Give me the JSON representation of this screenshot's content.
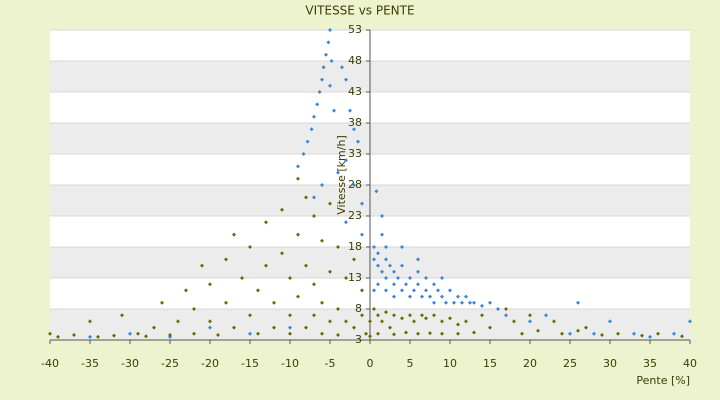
{
  "chart_data": {
    "type": "scatter",
    "title": "VITESSE vs PENTE",
    "x_label": "Pente [%]",
    "y_label": "Vitesse [km/h]",
    "xlim": [
      -40,
      40
    ],
    "xticks": [
      -40,
      -35,
      -30,
      -25,
      -20,
      -15,
      -10,
      -5,
      0,
      5,
      10,
      15,
      20,
      25,
      30,
      35,
      40
    ],
    "ylim": [
      3,
      53
    ],
    "yticks": [
      3,
      8,
      13,
      18,
      23,
      28,
      33,
      38,
      43,
      48,
      53
    ],
    "grid": true,
    "series": [
      {
        "color": "#3a86d8",
        "x": [
          -5,
          -5.2,
          -5.5,
          -5.8,
          -6,
          -6.3,
          -6.6,
          -7,
          -7.3,
          -7.8,
          -8.3,
          -9,
          -4.8,
          -5,
          -4.5,
          -3.5,
          -3,
          -2.5,
          -2,
          -1.5,
          -3,
          -4,
          -6,
          -7,
          -2,
          -1,
          -3,
          -1,
          0.5,
          0.5,
          1,
          1,
          1.5,
          2,
          2,
          2.5,
          3,
          3,
          3.5,
          4,
          4,
          4.5,
          5,
          5,
          5.5,
          6,
          6,
          6.5,
          7,
          7,
          7.5,
          8,
          8,
          8.5,
          9,
          9.5,
          10,
          10.5,
          11,
          11.5,
          12,
          12.5,
          13,
          14,
          15,
          16,
          2,
          1,
          0.5,
          3,
          2,
          1.5,
          4,
          6,
          9,
          0.8,
          1.5,
          17,
          20,
          22,
          28,
          30,
          33,
          35,
          38,
          40,
          -15,
          -20,
          -30,
          -25,
          -10,
          -35,
          25,
          26
        ],
        "values": [
          53,
          51,
          49,
          47,
          45,
          43,
          41,
          39,
          37,
          35,
          33,
          31,
          48,
          44,
          40,
          47,
          45,
          40,
          37,
          35,
          32,
          30,
          28,
          26,
          28,
          25,
          22,
          20,
          18,
          16,
          17,
          15,
          14,
          16,
          13,
          15,
          12,
          14,
          13,
          11,
          15,
          12,
          13,
          10,
          11,
          12,
          14,
          10,
          11,
          13,
          10,
          12,
          9,
          11,
          10,
          9,
          11,
          9,
          10,
          9,
          10,
          9,
          9,
          8.5,
          9,
          8,
          11,
          12,
          11,
          10,
          18,
          20,
          18,
          16,
          13,
          27,
          23,
          7,
          6,
          7,
          4,
          6,
          4,
          3.5,
          4,
          6,
          4,
          5,
          4,
          3.5,
          5,
          3.5,
          4,
          9
        ]
      },
      {
        "color": "#6b6b00",
        "x": [
          -39,
          -37,
          -35,
          -34,
          -32,
          -31,
          -29,
          -28,
          -27,
          -26,
          -25,
          -24,
          -23,
          -22,
          -22,
          -21,
          -20,
          -20,
          -19,
          -18,
          -18,
          -17,
          -17,
          -16,
          -15,
          -15,
          -14,
          -14,
          -13,
          -13,
          -12,
          -12,
          -11,
          -11,
          -10,
          -10,
          -10,
          -9,
          -9,
          -9,
          -8,
          -8,
          -8,
          -7,
          -7,
          -7,
          -6,
          -6,
          -6,
          -5,
          -5,
          -5,
          -4,
          -4,
          -4,
          -3,
          -3,
          -2,
          -2,
          -1,
          -1,
          -0.5,
          0,
          0,
          0.5,
          1,
          1,
          1.5,
          2,
          2.5,
          3,
          3,
          4,
          4.5,
          5,
          5.5,
          6,
          6.5,
          7,
          7.5,
          8,
          9,
          9,
          10,
          11,
          11,
          12,
          13,
          14,
          15,
          17,
          18,
          19,
          20,
          21,
          23,
          24,
          26,
          27,
          29,
          31,
          34,
          36,
          39,
          -40
        ],
        "values": [
          3.5,
          3.8,
          6,
          3.5,
          3.7,
          7,
          4,
          3.6,
          5,
          9,
          3.8,
          6,
          11,
          8,
          4,
          15,
          12,
          6,
          3.8,
          16,
          9,
          20,
          5,
          13,
          18,
          7,
          4,
          11,
          22,
          15,
          9,
          5,
          24,
          17,
          13,
          7,
          4,
          29,
          20,
          10,
          26,
          15,
          5,
          23,
          12,
          7,
          19,
          9,
          4,
          25,
          14,
          6,
          18,
          8,
          3.8,
          13,
          6,
          16,
          5,
          11,
          7,
          4,
          6,
          3.6,
          8,
          7,
          4,
          6,
          7.5,
          5,
          7,
          3.9,
          6.5,
          4.2,
          7,
          6,
          4,
          7,
          6.5,
          4.1,
          7,
          6,
          4,
          6.5,
          5.5,
          4,
          6,
          4.2,
          7,
          5,
          8,
          6,
          4,
          7,
          4.5,
          6,
          4,
          4.5,
          5,
          3.8,
          4,
          3.7,
          4,
          3.6,
          4
        ]
      }
    ]
  }
}
